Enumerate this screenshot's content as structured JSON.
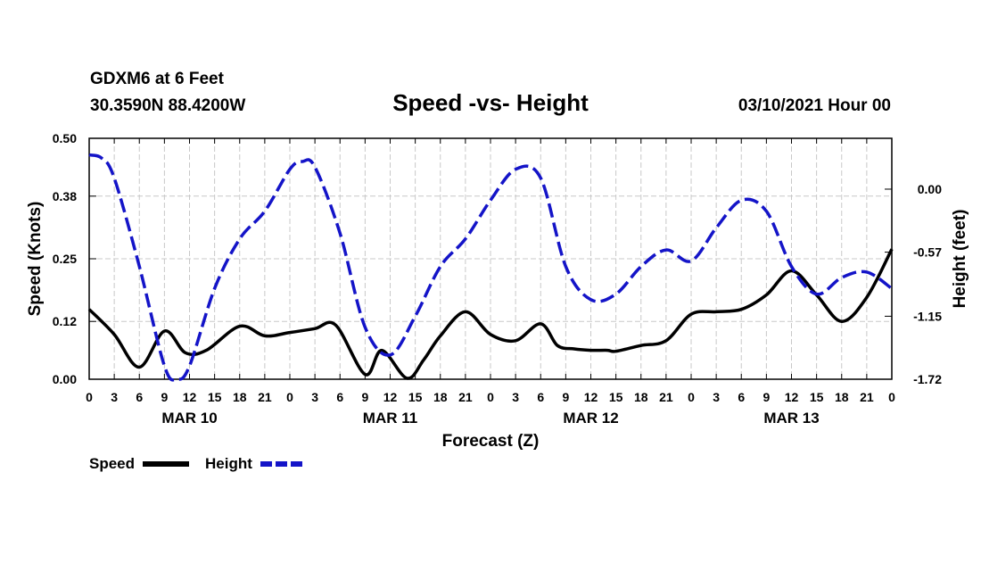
{
  "header": {
    "station": "GDXM6 at 6 Feet",
    "coords": "30.3590N 88.4200W",
    "title": "Speed -vs- Height",
    "date": "03/10/2021 Hour 00"
  },
  "colors": {
    "speed": "#000000",
    "height": "#1414c8"
  },
  "chart_data": {
    "type": "line",
    "title": "Speed -vs- Height",
    "xlabel": "Forecast (Z)",
    "ylabel": "Speed (Knots)",
    "y2label": "Height (feet)",
    "xlim": [
      0,
      96
    ],
    "ylim": [
      0,
      0.5
    ],
    "y2lim": [
      -1.72,
      0.46
    ],
    "x_ticks": [
      0,
      3,
      6,
      9,
      12,
      15,
      18,
      21,
      24,
      27,
      30,
      33,
      36,
      39,
      42,
      45,
      48,
      51,
      54,
      57,
      60,
      63,
      66,
      69,
      72,
      75,
      78,
      81,
      84,
      87,
      90,
      93,
      96
    ],
    "x_tick_labels": [
      "0",
      "3",
      "6",
      "9",
      "12",
      "15",
      "18",
      "21",
      "0",
      "3",
      "6",
      "9",
      "12",
      "15",
      "18",
      "21",
      "0",
      "3",
      "6",
      "9",
      "12",
      "15",
      "18",
      "21",
      "0",
      "3",
      "6",
      "9",
      "12",
      "15",
      "18",
      "21",
      "0"
    ],
    "day_labels": [
      {
        "x": 12,
        "label": "MAR 10"
      },
      {
        "x": 36,
        "label": "MAR 11"
      },
      {
        "x": 60,
        "label": "MAR 12"
      },
      {
        "x": 84,
        "label": "MAR 13"
      }
    ],
    "y_ticks": [
      0.0,
      0.12,
      0.25,
      0.38,
      0.5
    ],
    "y_tick_labels": [
      "0.00",
      "0.12",
      "0.25",
      "0.38",
      "0.50"
    ],
    "y2_ticks": [
      0.0,
      -0.57,
      -1.15,
      -1.72
    ],
    "y2_tick_labels": [
      "0.00",
      "-0.57",
      "-1.15",
      "-1.72"
    ],
    "grid": true,
    "series": [
      {
        "name": "Speed",
        "axis": "left",
        "style": "solid",
        "x": [
          0,
          3,
          6,
          9,
          11.5,
          14,
          18,
          21,
          24,
          27,
          29.5,
          33,
          35,
          38,
          40,
          42,
          45,
          48,
          51,
          54,
          56,
          58,
          60,
          62,
          63,
          66,
          69,
          72,
          75,
          78,
          81,
          84,
          87,
          90,
          93,
          96
        ],
        "y": [
          0.145,
          0.093,
          0.025,
          0.1,
          0.055,
          0.06,
          0.11,
          0.09,
          0.097,
          0.105,
          0.112,
          0.01,
          0.06,
          0.002,
          0.04,
          0.09,
          0.14,
          0.093,
          0.08,
          0.115,
          0.07,
          0.063,
          0.06,
          0.06,
          0.058,
          0.07,
          0.08,
          0.135,
          0.14,
          0.145,
          0.175,
          0.225,
          0.175,
          0.12,
          0.17,
          0.27
        ]
      },
      {
        "name": "Height",
        "axis": "right",
        "style": "dashed",
        "x": [
          0,
          1.5,
          3,
          6,
          9,
          10.5,
          12,
          15,
          18,
          21,
          24,
          25.5,
          27,
          30,
          33,
          36,
          39,
          42,
          45,
          48,
          51,
          54,
          57,
          60,
          63,
          66,
          69,
          72,
          75,
          78,
          81,
          84,
          87,
          90,
          93,
          96
        ],
        "y": [
          0.31,
          0.28,
          0.1,
          -0.7,
          -1.6,
          -1.72,
          -1.6,
          -0.9,
          -0.45,
          -0.2,
          0.18,
          0.25,
          0.2,
          -0.4,
          -1.25,
          -1.5,
          -1.15,
          -0.7,
          -0.45,
          -0.1,
          0.18,
          0.1,
          -0.7,
          -1.0,
          -0.95,
          -0.7,
          -0.55,
          -0.65,
          -0.35,
          -0.1,
          -0.2,
          -0.7,
          -0.95,
          -0.8,
          -0.75,
          -0.9
        ]
      }
    ],
    "legend": [
      {
        "label": "Speed",
        "style": "solid"
      },
      {
        "label": "Height",
        "style": "dashed"
      }
    ]
  }
}
